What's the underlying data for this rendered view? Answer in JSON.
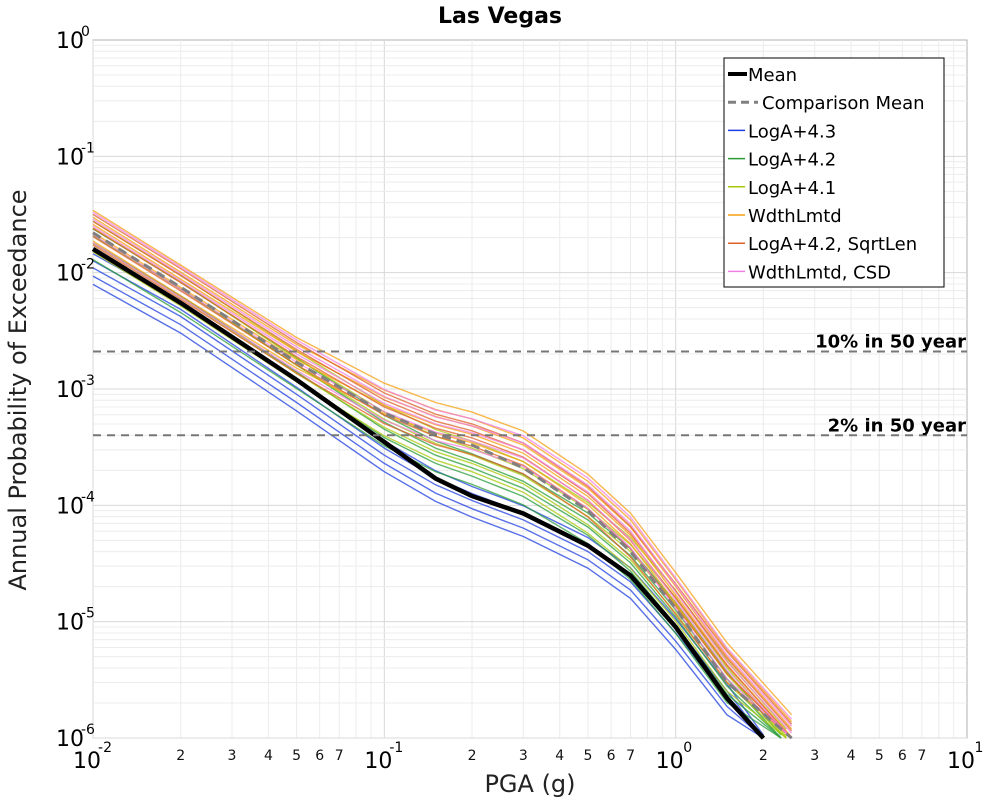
{
  "chart_data": {
    "type": "line",
    "title": "Las Vegas",
    "xlabel": "PGA (g)",
    "ylabel": "Annual Probability of Exceedance",
    "x_scale": "log",
    "y_scale": "log",
    "xlim": [
      0.01,
      10
    ],
    "ylim": [
      1e-06,
      1
    ],
    "x_major_ticks": [
      {
        "base": "10",
        "exp": "-2",
        "value": 0.01
      },
      {
        "base": "10",
        "exp": "-1",
        "value": 0.1
      },
      {
        "base": "10",
        "exp": "0",
        "value": 1
      },
      {
        "base": "10",
        "exp": "1",
        "value": 10
      }
    ],
    "y_major_ticks": [
      {
        "base": "10",
        "exp": "0",
        "value": 1
      },
      {
        "base": "10",
        "exp": "-1",
        "value": 0.1
      },
      {
        "base": "10",
        "exp": "-2",
        "value": 0.01
      },
      {
        "base": "10",
        "exp": "-3",
        "value": 0.001
      },
      {
        "base": "10",
        "exp": "-4",
        "value": 0.0001
      },
      {
        "base": "10",
        "exp": "-5",
        "value": 1e-05
      },
      {
        "base": "10",
        "exp": "-6",
        "value": 1e-06
      }
    ],
    "x_minor_tick_labels": [
      "2",
      "3",
      "4",
      "5",
      "6",
      "7"
    ],
    "grid": true,
    "legend_position": "top-right",
    "reference_lines": [
      {
        "label": "10% in 50 year",
        "y": 0.0021
      },
      {
        "label": "2% in 50 year",
        "y": 0.0004
      }
    ],
    "series": [
      {
        "name": "Mean",
        "color": "#000000",
        "style": "solid-thick",
        "x": [
          0.01,
          0.02,
          0.05,
          0.1,
          0.15,
          0.2,
          0.3,
          0.5,
          0.7,
          1.0,
          1.5,
          2.0
        ],
        "y": [
          0.016,
          0.0055,
          0.0012,
          0.00035,
          0.00017,
          0.00012,
          8.5e-05,
          4.5e-05,
          2.5e-05,
          9e-06,
          2.2e-06,
          7e-07
        ]
      },
      {
        "name": "Comparison Mean",
        "color": "#808080",
        "style": "dashed",
        "x": [
          0.01,
          0.02,
          0.05,
          0.1,
          0.15,
          0.2,
          0.3,
          0.5,
          0.7,
          1.0,
          1.5,
          2.5
        ],
        "y": [
          0.022,
          0.0075,
          0.0017,
          0.00062,
          0.00041,
          0.00033,
          0.00021,
          9e-05,
          4e-05,
          1.3e-05,
          3e-06,
          9e-07
        ]
      },
      {
        "name": "LogA+4.3",
        "color": "#1f3fe0",
        "style": "thin-band",
        "x": [
          0.01,
          0.02,
          0.05,
          0.1,
          0.15,
          0.2,
          0.3,
          0.5,
          0.7,
          1.0,
          1.5,
          2.0
        ],
        "y": [
          0.011,
          0.0042,
          0.0009,
          0.00027,
          0.00015,
          0.00011,
          7.5e-05,
          4e-05,
          2.2e-05,
          8e-06,
          2.2e-06,
          8e-07
        ]
      },
      {
        "name": "LogA+4.2",
        "color": "#2a9d3a",
        "style": "thin-band",
        "x": [
          0.01,
          0.02,
          0.05,
          0.1,
          0.15,
          0.2,
          0.3,
          0.5,
          0.7,
          1.0,
          1.5,
          2.3
        ],
        "y": [
          0.018,
          0.0063,
          0.0014,
          0.00045,
          0.00027,
          0.00021,
          0.00014,
          6.5e-05,
          3.2e-05,
          1.1e-05,
          2.8e-06,
          8e-07
        ]
      },
      {
        "name": "LogA+4.1",
        "color": "#a8c80a",
        "style": "thin-band",
        "x": [
          0.01,
          0.02,
          0.05,
          0.1,
          0.15,
          0.2,
          0.3,
          0.5,
          0.7,
          1.0,
          1.5,
          2.4
        ],
        "y": [
          0.021,
          0.0072,
          0.0016,
          0.00055,
          0.00034,
          0.00027,
          0.00018,
          8e-05,
          4e-05,
          1.4e-05,
          3.5e-06,
          9e-07
        ]
      },
      {
        "name": "WdthLmtd",
        "color": "#f5a010",
        "style": "thin-band",
        "x": [
          0.01,
          0.02,
          0.05,
          0.1,
          0.15,
          0.2,
          0.3,
          0.5,
          0.7,
          1.0,
          1.5,
          2.5
        ],
        "y": [
          0.026,
          0.0088,
          0.0021,
          0.00085,
          0.00058,
          0.00048,
          0.00033,
          0.00014,
          6.5e-05,
          2e-05,
          5e-06,
          1.2e-06
        ]
      },
      {
        "name": "LogA+4.2, SqrtLen",
        "color": "#e0602a",
        "style": "thin-band",
        "x": [
          0.01,
          0.02,
          0.05,
          0.1,
          0.15,
          0.2,
          0.3,
          0.5,
          0.7,
          1.0,
          1.5,
          2.5
        ],
        "y": [
          0.024,
          0.0082,
          0.0019,
          0.0007,
          0.00046,
          0.00038,
          0.00026,
          0.00011,
          5e-05,
          1.6e-05,
          4.2e-06,
          1e-06
        ]
      },
      {
        "name": "WdthLmtd, CSD",
        "color": "#f080e0",
        "style": "thin-band",
        "x": [
          0.01,
          0.02,
          0.05,
          0.1,
          0.15,
          0.2,
          0.3,
          0.5,
          0.7,
          1.0,
          1.5,
          2.5
        ],
        "y": [
          0.025,
          0.0085,
          0.002,
          0.00075,
          0.0005,
          0.00042,
          0.0003,
          0.00013,
          6e-05,
          1.8e-05,
          4.5e-06,
          1.1e-06
        ]
      }
    ]
  }
}
